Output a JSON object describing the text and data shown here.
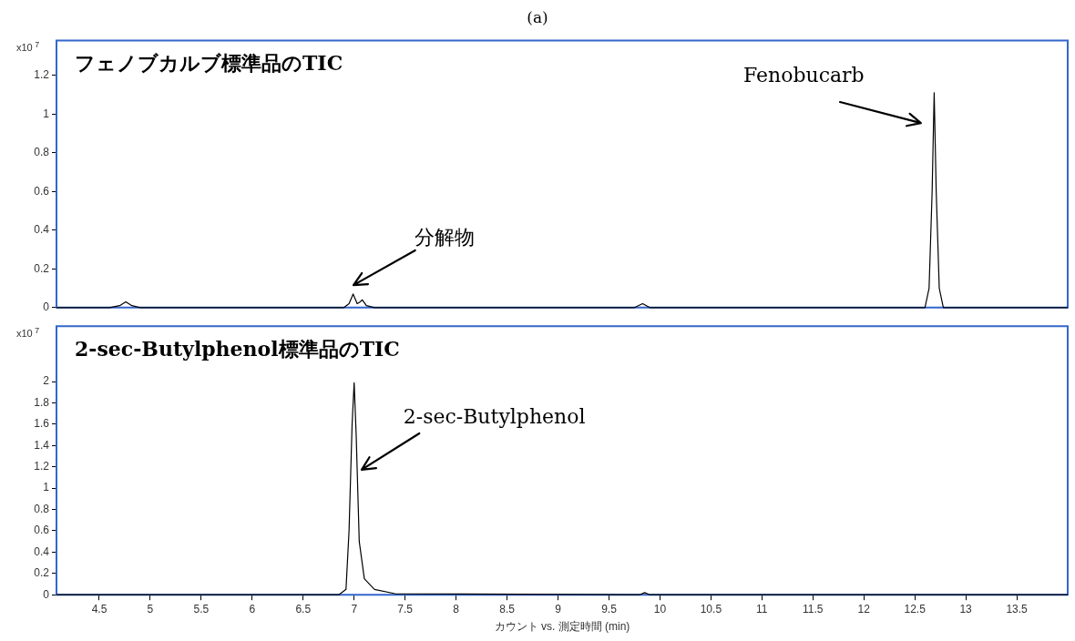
{
  "chart_data": [
    {
      "type": "line",
      "title": "(a)",
      "ylabel": "x10$^{7}$",
      "xlim": [
        4.08,
        14
      ],
      "xticks": [
        4.5,
        5,
        5.5,
        6,
        6.5,
        7,
        7.5,
        8,
        8.5,
        9,
        9.5,
        10,
        10.5,
        11,
        11.5,
        12,
        12.5,
        13,
        13.5
      ],
      "ylim": [
        0,
        1.38
      ],
      "yticks": [
        0,
        0.2,
        0.4,
        0.6,
        0.8,
        1,
        1.2
      ],
      "tick_labels": "y",
      "grid": false,
      "legend": false,
      "marker": "none",
      "line_style": "solid",
      "annotations": [
        "フェノブカルブ標準品のTIC",
        "分解物",
        "Fenobucarb"
      ],
      "series": [
        {
          "color": "#000000",
          "x": [
            4.08,
            4.6,
            4.7,
            4.76,
            4.82,
            4.9,
            5.3,
            6.9,
            6.95,
            6.99,
            7.03,
            7.06,
            7.08,
            7.12,
            7.2,
            9.75,
            9.83,
            9.9,
            12.5,
            12.6,
            12.64,
            12.67,
            12.69,
            12.71,
            12.74,
            12.78,
            12.9,
            14
          ],
          "values": [
            0,
            0,
            0.01,
            0.03,
            0.01,
            0,
            0,
            0,
            0.02,
            0.07,
            0.02,
            0.03,
            0.04,
            0.01,
            0,
            0,
            0.02,
            0,
            0,
            0,
            0.1,
            0.6,
            1.11,
            0.6,
            0.1,
            0,
            0,
            0
          ]
        }
      ]
    },
    {
      "type": "line",
      "xlabel": "カウント vs. 測定時間 (min)",
      "ylabel": "x10$^{7}$",
      "xlim": [
        4.08,
        14
      ],
      "xticks": [
        4.5,
        5,
        5.5,
        6,
        6.5,
        7,
        7.5,
        8,
        8.5,
        9,
        9.5,
        10,
        10.5,
        11,
        11.5,
        12,
        12.5,
        13,
        13.5
      ],
      "ylim": [
        0,
        2.52
      ],
      "yticks": [
        0,
        0.2,
        0.4,
        0.6,
        0.8,
        1,
        1.2,
        1.4,
        1.6,
        1.8,
        2
      ],
      "grid": false,
      "legend": false,
      "marker": "none",
      "line_style": "solid",
      "annotations": [
        "2-sec-Butylphenol標準品のTIC",
        "2-sec-Butylphenol"
      ],
      "series": [
        {
          "color": "#000000",
          "x": [
            4.08,
            6.85,
            6.92,
            6.95,
            6.98,
            7.0,
            7.02,
            7.05,
            7.1,
            7.2,
            7.4,
            9.8,
            9.85,
            9.9,
            14
          ],
          "values": [
            0,
            0,
            0.05,
            0.6,
            1.6,
            1.99,
            1.5,
            0.5,
            0.15,
            0.05,
            0.01,
            0,
            0.02,
            0,
            0
          ]
        }
      ]
    }
  ]
}
